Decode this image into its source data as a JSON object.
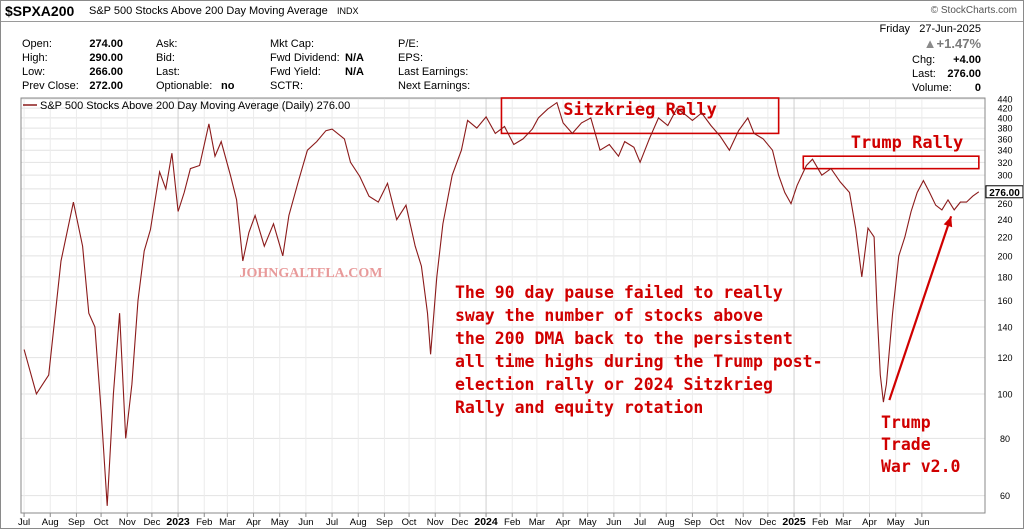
{
  "header": {
    "ticker": "$SPXA200",
    "name": "S&P 500 Stocks Above 200 Day Moving Average",
    "exchange": "INDX",
    "brand": "© StockCharts.com"
  },
  "quote": {
    "open_label": "Open:",
    "open": "274.00",
    "high_label": "High:",
    "high": "290.00",
    "low_label": "Low:",
    "low": "266.00",
    "prev_label": "Prev Close:",
    "prev": "272.00",
    "ask_label": "Ask:",
    "bid_label": "Bid:",
    "last_label2": "Last:",
    "optionable_label": "Optionable:",
    "optionable": "no",
    "mktcap_label": "Mkt Cap:",
    "fwddiv_label": "Fwd Dividend:",
    "fwddiv": "N/A",
    "fwdyield_label": "Fwd Yield:",
    "fwdyield": "N/A",
    "sctr_label": "SCTR:",
    "pe_label": "P/E:",
    "eps_label": "EPS:",
    "lastearn_label": "Last Earnings:",
    "nextearn_label": "Next Earnings:",
    "date": "Friday   27-Jun-2025",
    "pct_change": "+1.47%",
    "chg_label": "Chg:",
    "chg": "+4.00",
    "last_label": "Last:",
    "last": "276.00",
    "volume_label": "Volume:",
    "volume": "0"
  },
  "chart_data": {
    "type": "line",
    "series": [
      {
        "name": "S&P 500 Stocks Above 200 Day Moving Average (Daily) 276.00",
        "color": "#8b1a1a",
        "points": [
          [
            2022.5,
            125
          ],
          [
            2022.54,
            100
          ],
          [
            2022.58,
            110
          ],
          [
            2022.62,
            195
          ],
          [
            2022.66,
            262
          ],
          [
            2022.69,
            210
          ],
          [
            2022.71,
            150
          ],
          [
            2022.73,
            140
          ],
          [
            2022.75,
            92
          ],
          [
            2022.77,
            57
          ],
          [
            2022.79,
            100
          ],
          [
            2022.81,
            150
          ],
          [
            2022.83,
            80
          ],
          [
            2022.85,
            105
          ],
          [
            2022.87,
            160
          ],
          [
            2022.89,
            205
          ],
          [
            2022.91,
            228
          ],
          [
            2022.94,
            305
          ],
          [
            2022.96,
            280
          ],
          [
            2022.98,
            335
          ],
          [
            2023.0,
            250
          ],
          [
            2023.02,
            275
          ],
          [
            2023.04,
            310
          ],
          [
            2023.07,
            315
          ],
          [
            2023.1,
            388
          ],
          [
            2023.12,
            330
          ],
          [
            2023.14,
            355
          ],
          [
            2023.17,
            300
          ],
          [
            2023.19,
            265
          ],
          [
            2023.21,
            195
          ],
          [
            2023.23,
            225
          ],
          [
            2023.25,
            245
          ],
          [
            2023.28,
            210
          ],
          [
            2023.31,
            235
          ],
          [
            2023.34,
            200
          ],
          [
            2023.36,
            245
          ],
          [
            2023.39,
            290
          ],
          [
            2023.42,
            340
          ],
          [
            2023.45,
            355
          ],
          [
            2023.48,
            375
          ],
          [
            2023.5,
            378
          ],
          [
            2023.54,
            360
          ],
          [
            2023.56,
            320
          ],
          [
            2023.59,
            298
          ],
          [
            2023.62,
            270
          ],
          [
            2023.65,
            262
          ],
          [
            2023.68,
            288
          ],
          [
            2023.71,
            240
          ],
          [
            2023.74,
            258
          ],
          [
            2023.77,
            210
          ],
          [
            2023.79,
            190
          ],
          [
            2023.81,
            150
          ],
          [
            2023.82,
            122
          ],
          [
            2023.84,
            180
          ],
          [
            2023.86,
            235
          ],
          [
            2023.89,
            300
          ],
          [
            2023.92,
            340
          ],
          [
            2023.94,
            395
          ],
          [
            2023.97,
            380
          ],
          [
            2024.0,
            402
          ],
          [
            2024.03,
            370
          ],
          [
            2024.06,
            383
          ],
          [
            2024.09,
            350
          ],
          [
            2024.12,
            360
          ],
          [
            2024.15,
            378
          ],
          [
            2024.17,
            400
          ],
          [
            2024.2,
            418
          ],
          [
            2024.23,
            432
          ],
          [
            2024.25,
            390
          ],
          [
            2024.28,
            370
          ],
          [
            2024.31,
            390
          ],
          [
            2024.34,
            400
          ],
          [
            2024.37,
            340
          ],
          [
            2024.4,
            350
          ],
          [
            2024.43,
            330
          ],
          [
            2024.45,
            355
          ],
          [
            2024.48,
            345
          ],
          [
            2024.5,
            320
          ],
          [
            2024.53,
            360
          ],
          [
            2024.56,
            400
          ],
          [
            2024.59,
            385
          ],
          [
            2024.62,
            420
          ],
          [
            2024.65,
            405
          ],
          [
            2024.67,
            395
          ],
          [
            2024.7,
            410
          ],
          [
            2024.73,
            385
          ],
          [
            2024.76,
            365
          ],
          [
            2024.79,
            340
          ],
          [
            2024.82,
            375
          ],
          [
            2024.85,
            400
          ],
          [
            2024.87,
            370
          ],
          [
            2024.9,
            360
          ],
          [
            2024.93,
            340
          ],
          [
            2024.95,
            300
          ],
          [
            2024.97,
            275
          ],
          [
            2024.99,
            260
          ],
          [
            2025.01,
            285
          ],
          [
            2025.04,
            315
          ],
          [
            2025.06,
            325
          ],
          [
            2025.09,
            300
          ],
          [
            2025.12,
            310
          ],
          [
            2025.15,
            290
          ],
          [
            2025.18,
            275
          ],
          [
            2025.2,
            230
          ],
          [
            2025.22,
            180
          ],
          [
            2025.24,
            230
          ],
          [
            2025.26,
            220
          ],
          [
            2025.27,
            150
          ],
          [
            2025.28,
            110
          ],
          [
            2025.29,
            96
          ],
          [
            2025.3,
            105
          ],
          [
            2025.32,
            150
          ],
          [
            2025.34,
            200
          ],
          [
            2025.36,
            220
          ],
          [
            2025.38,
            250
          ],
          [
            2025.4,
            275
          ],
          [
            2025.42,
            292
          ],
          [
            2025.44,
            275
          ],
          [
            2025.46,
            258
          ],
          [
            2025.48,
            252
          ],
          [
            2025.5,
            265
          ],
          [
            2025.52,
            252
          ],
          [
            2025.54,
            262
          ],
          [
            2025.56,
            262
          ],
          [
            2025.58,
            270
          ],
          [
            2025.6,
            276
          ]
        ]
      }
    ],
    "y_scale": "log",
    "ylim": [
      55,
      442
    ],
    "xlim": [
      2022.49,
      2025.62
    ],
    "y_ticks": [
      60,
      80,
      100,
      120,
      140,
      160,
      180,
      200,
      220,
      240,
      260,
      280,
      300,
      320,
      340,
      360,
      380,
      400,
      420,
      440
    ],
    "y_tick_labels": [
      "60",
      "80",
      "100",
      "120",
      "140",
      "160",
      "180",
      "200",
      "220",
      "240",
      "260",
      "280",
      "300",
      "320",
      "340",
      "360",
      "380",
      "400",
      "420",
      "440"
    ],
    "x_ticks": [
      {
        "x": 2022.5,
        "label": "Jul",
        "bold": false
      },
      {
        "x": 2022.585,
        "label": "Aug",
        "bold": false
      },
      {
        "x": 2022.67,
        "label": "Sep",
        "bold": false
      },
      {
        "x": 2022.75,
        "label": "Oct",
        "bold": false
      },
      {
        "x": 2022.835,
        "label": "Nov",
        "bold": false
      },
      {
        "x": 2022.915,
        "label": "Dec",
        "bold": false
      },
      {
        "x": 2023.0,
        "label": "2023",
        "bold": true
      },
      {
        "x": 2023.085,
        "label": "Feb",
        "bold": false
      },
      {
        "x": 2023.16,
        "label": "Mar",
        "bold": false
      },
      {
        "x": 2023.245,
        "label": "Apr",
        "bold": false
      },
      {
        "x": 2023.33,
        "label": "May",
        "bold": false
      },
      {
        "x": 2023.415,
        "label": "Jun",
        "bold": false
      },
      {
        "x": 2023.5,
        "label": "Jul",
        "bold": false
      },
      {
        "x": 2023.585,
        "label": "Aug",
        "bold": false
      },
      {
        "x": 2023.67,
        "label": "Sep",
        "bold": false
      },
      {
        "x": 2023.75,
        "label": "Oct",
        "bold": false
      },
      {
        "x": 2023.835,
        "label": "Nov",
        "bold": false
      },
      {
        "x": 2023.915,
        "label": "Dec",
        "bold": false
      },
      {
        "x": 2024.0,
        "label": "2024",
        "bold": true
      },
      {
        "x": 2024.085,
        "label": "Feb",
        "bold": false
      },
      {
        "x": 2024.165,
        "label": "Mar",
        "bold": false
      },
      {
        "x": 2024.25,
        "label": "Apr",
        "bold": false
      },
      {
        "x": 2024.33,
        "label": "May",
        "bold": false
      },
      {
        "x": 2024.415,
        "label": "Jun",
        "bold": false
      },
      {
        "x": 2024.5,
        "label": "Jul",
        "bold": false
      },
      {
        "x": 2024.585,
        "label": "Aug",
        "bold": false
      },
      {
        "x": 2024.67,
        "label": "Sep",
        "bold": false
      },
      {
        "x": 2024.75,
        "label": "Oct",
        "bold": false
      },
      {
        "x": 2024.835,
        "label": "Nov",
        "bold": false
      },
      {
        "x": 2024.915,
        "label": "Dec",
        "bold": false
      },
      {
        "x": 2025.0,
        "label": "2025",
        "bold": true
      },
      {
        "x": 2025.085,
        "label": "Feb",
        "bold": false
      },
      {
        "x": 2025.16,
        "label": "Mar",
        "bold": false
      },
      {
        "x": 2025.245,
        "label": "Apr",
        "bold": false
      },
      {
        "x": 2025.33,
        "label": "May",
        "bold": false
      },
      {
        "x": 2025.415,
        "label": "Jun",
        "bold": false
      }
    ],
    "last_value_label": "276.00",
    "watermark": "JOHNGALTFLA.COM",
    "annotations": {
      "sitzkrieg": {
        "label": "Sitzkrieg Rally",
        "x_range": [
          2024.05,
          2024.95
        ],
        "y_range": [
          370,
          442
        ]
      },
      "trump_rally": {
        "label": "Trump Rally",
        "x_range": [
          2025.03,
          2025.6
        ],
        "y_range": [
          310,
          330
        ]
      },
      "note_lines": [
        "The 90 day pause failed to really",
        "sway the number of stocks above",
        "the 200 DMA back to the persistent",
        "all time highs during the Trump post-",
        "election rally or 2024 Sitzkrieg",
        "Rally and equity rotation"
      ],
      "trade_war_lines": [
        "Trump",
        "Trade",
        "War v2.0"
      ],
      "arrow_from": [
        2025.29,
        96
      ],
      "arrow_to": [
        2025.51,
        244
      ]
    },
    "grid": true,
    "color": "#8b1a1a",
    "accent": "#d00000"
  }
}
